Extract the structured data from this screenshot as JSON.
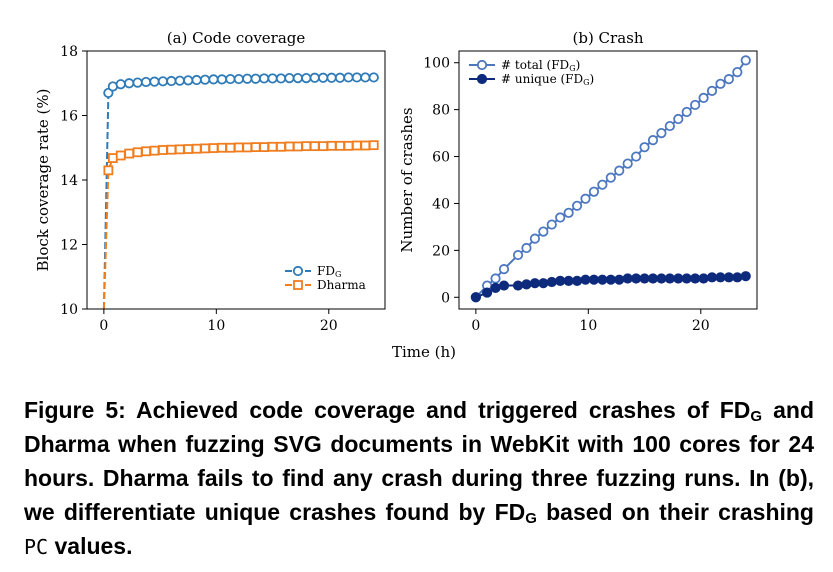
{
  "figure": {
    "xlabel_shared": "Time (h)",
    "colors": {
      "fdg": "#2e7bb8",
      "dharma": "#f07d1e",
      "total": "#4d78c0",
      "unique": "#0d2a7c"
    }
  },
  "chart_data": [
    {
      "type": "line",
      "title": "(a) Code coverage",
      "xlabel": "",
      "ylabel": "Block coverage rate (%)",
      "xlim": [
        -1.5,
        25
      ],
      "ylim": [
        10,
        18
      ],
      "xticks": [
        "0",
        "10",
        "20"
      ],
      "yticks": [
        "10",
        "12",
        "14",
        "16",
        "18"
      ],
      "legend": "lower-right",
      "series": [
        {
          "name": "FDG",
          "legend_main": "FD",
          "legend_sub": "G",
          "x": [
            0,
            0.4,
            0.8,
            1.5,
            2.25,
            3.0,
            3.75,
            4.5,
            5.25,
            6.0,
            6.75,
            7.5,
            8.25,
            9.0,
            9.75,
            10.5,
            11.25,
            12.0,
            12.75,
            13.5,
            14.25,
            15.0,
            15.75,
            16.5,
            17.25,
            18.0,
            18.75,
            19.5,
            20.25,
            21.0,
            21.75,
            22.5,
            23.25,
            24.0
          ],
          "y": [
            10.0,
            16.7,
            16.9,
            16.97,
            17.0,
            17.02,
            17.04,
            17.05,
            17.06,
            17.07,
            17.08,
            17.09,
            17.1,
            17.11,
            17.12,
            17.12,
            17.13,
            17.13,
            17.14,
            17.14,
            17.15,
            17.15,
            17.15,
            17.16,
            17.16,
            17.16,
            17.17,
            17.17,
            17.17,
            17.17,
            17.18,
            17.18,
            17.18,
            17.18
          ]
        },
        {
          "name": "Dharma",
          "legend_main": "Dharma",
          "legend_sub": "",
          "x": [
            0,
            0.4,
            0.8,
            1.5,
            2.25,
            3.0,
            3.75,
            4.5,
            5.25,
            6.0,
            6.75,
            7.5,
            8.25,
            9.0,
            9.75,
            10.5,
            11.25,
            12.0,
            12.75,
            13.5,
            14.25,
            15.0,
            15.75,
            16.5,
            17.25,
            18.0,
            18.75,
            19.5,
            20.25,
            21.0,
            21.75,
            22.5,
            23.25,
            24.0
          ],
          "y": [
            10.0,
            14.3,
            14.68,
            14.76,
            14.82,
            14.86,
            14.89,
            14.91,
            14.93,
            14.94,
            14.95,
            14.96,
            14.97,
            14.98,
            14.99,
            15.0,
            15.0,
            15.01,
            15.01,
            15.02,
            15.02,
            15.03,
            15.03,
            15.04,
            15.04,
            15.05,
            15.05,
            15.05,
            15.06,
            15.06,
            15.06,
            15.07,
            15.07,
            15.08
          ]
        }
      ]
    },
    {
      "type": "line",
      "title": "(b) Crash",
      "xlabel": "",
      "ylabel": "Number of crashes",
      "xlim": [
        -1.5,
        25
      ],
      "ylim": [
        -5,
        105
      ],
      "xticks": [
        "0",
        "10",
        "20"
      ],
      "yticks": [
        "0",
        "20",
        "40",
        "60",
        "80",
        "100"
      ],
      "legend": "top-left",
      "series": [
        {
          "name": "# total (FDG)",
          "legend_main": "# total (FD",
          "legend_sub": "G",
          "legend_tail": ")",
          "x": [
            0,
            1.0,
            1.75,
            2.5,
            3.75,
            4.5,
            5.25,
            6.0,
            6.75,
            7.5,
            8.25,
            9.0,
            9.75,
            10.5,
            11.25,
            12.0,
            12.75,
            13.5,
            14.25,
            15.0,
            15.75,
            16.5,
            17.25,
            18.0,
            18.75,
            19.5,
            20.25,
            21.0,
            21.75,
            22.5,
            23.25,
            24.0
          ],
          "y": [
            0,
            5,
            8,
            12,
            18,
            21,
            25,
            28,
            31,
            34,
            36,
            39,
            42,
            45,
            48,
            51,
            54,
            57,
            60,
            64,
            67,
            70,
            73,
            76,
            79,
            82,
            85,
            88,
            91,
            93,
            96,
            101
          ]
        },
        {
          "name": "# unique (FDG)",
          "legend_main": "# unique (FD",
          "legend_sub": "G",
          "legend_tail": ")",
          "x": [
            0,
            1.0,
            1.75,
            2.5,
            3.75,
            4.5,
            5.25,
            6.0,
            6.75,
            7.5,
            8.25,
            9.0,
            9.75,
            10.5,
            11.25,
            12.0,
            12.75,
            13.5,
            14.25,
            15.0,
            15.75,
            16.5,
            17.25,
            18.0,
            18.75,
            19.5,
            20.25,
            21.0,
            21.75,
            22.5,
            23.25,
            24.0
          ],
          "y": [
            0,
            2,
            4,
            5,
            5,
            5.5,
            6,
            6,
            6.5,
            7,
            7,
            7,
            7.5,
            7.5,
            7.5,
            7.5,
            7.5,
            8,
            8,
            8,
            8,
            8,
            8,
            8,
            8,
            8,
            8,
            8.5,
            8.5,
            8.5,
            8.5,
            9
          ]
        }
      ]
    }
  ],
  "caption": {
    "part1": "Figure 5: Achieved code coverage and triggered crashes of",
    "fd": "FD",
    "sub": "G",
    "part2": " and Dharma when fuzzing SVG documents in WebKit with 100 cores for 24 hours. Dharma fails to find any crash during three fuzzing runs. In (b), we differentiate unique crashes found by ",
    "fd2": "FD",
    "sub2": "G",
    "part3": " based on their crashing ",
    "pc": "PC",
    "part4": " values."
  }
}
